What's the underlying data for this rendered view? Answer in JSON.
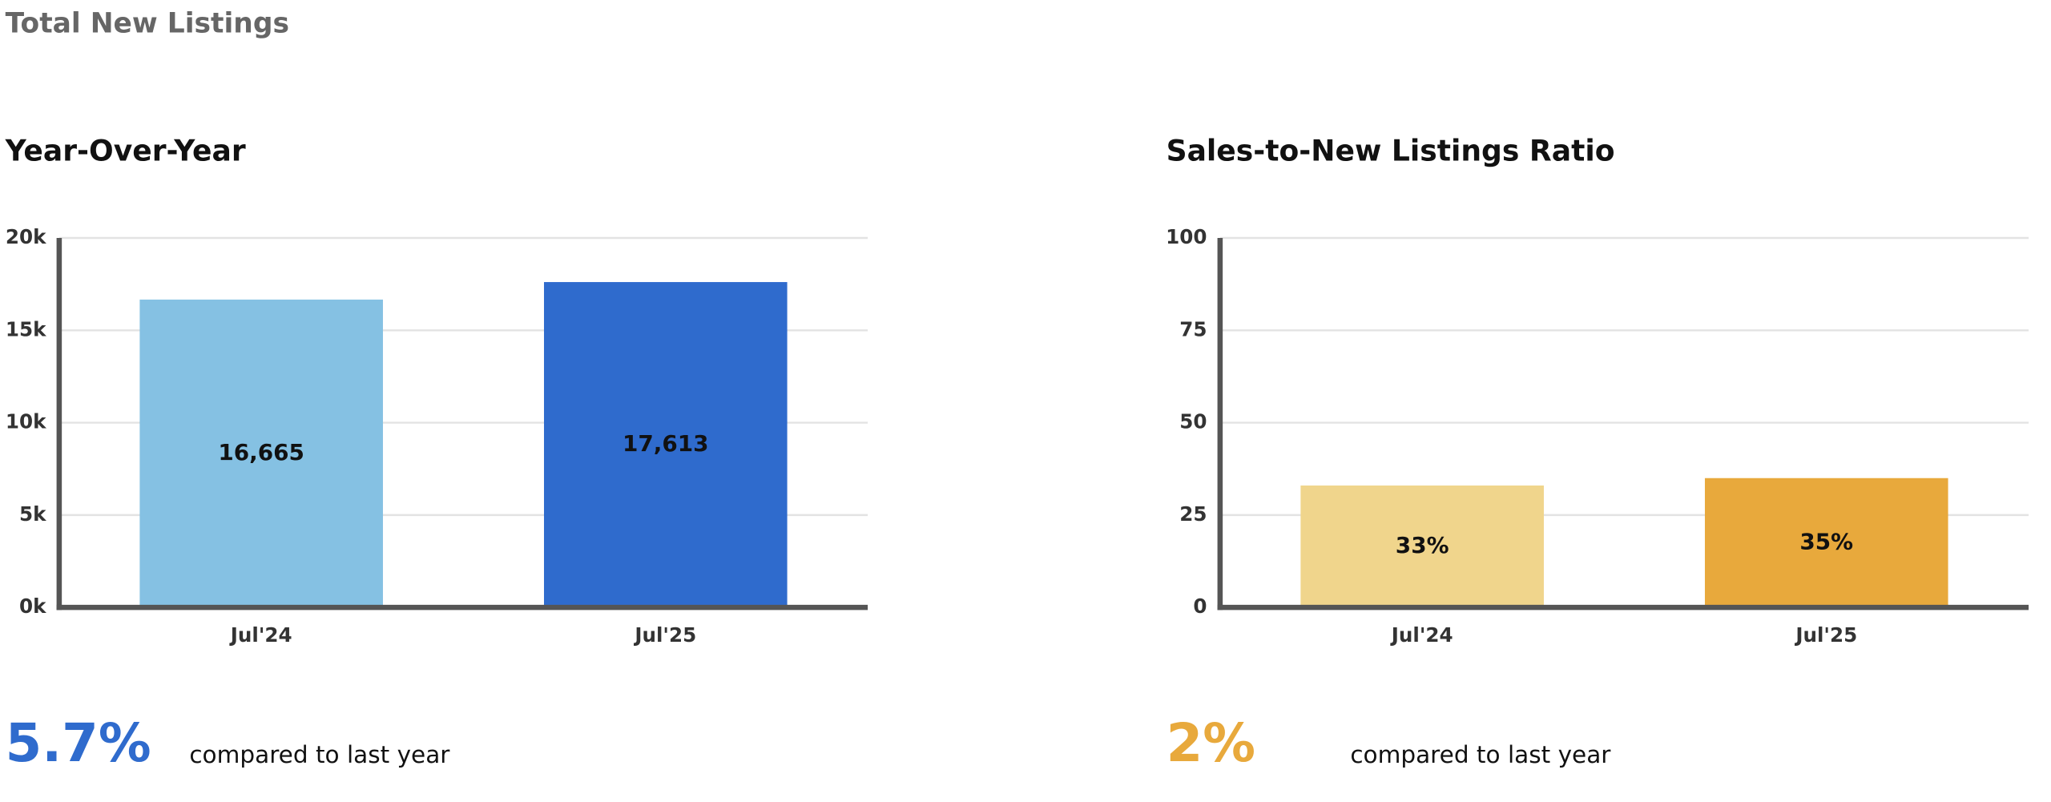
{
  "page_title": "Total New Listings",
  "chart_data": [
    {
      "type": "bar",
      "title": "Year-Over-Year",
      "categories": [
        "Jul'24",
        "Jul'25"
      ],
      "values": [
        16665,
        17613
      ],
      "value_labels": [
        "16,665",
        "17,613"
      ],
      "colors": [
        "#85c1e3",
        "#2f6bcd"
      ],
      "ylim": [
        0,
        20000
      ],
      "yticks": [
        {
          "value": 0,
          "label": "0k"
        },
        {
          "value": 5000,
          "label": "5k"
        },
        {
          "value": 10000,
          "label": "10k"
        },
        {
          "value": 15000,
          "label": "15k"
        },
        {
          "value": 20000,
          "label": "20k"
        }
      ],
      "grid": true,
      "summary": {
        "change": "5.7%",
        "text": "compared to last year",
        "color": "#2f6bcd"
      }
    },
    {
      "type": "bar",
      "title": "Sales-to-New Listings Ratio",
      "categories": [
        "Jul'24",
        "Jul'25"
      ],
      "values": [
        33,
        35
      ],
      "value_labels": [
        "33%",
        "35%"
      ],
      "colors": [
        "#f0d58c",
        "#e8a93c"
      ],
      "ylim": [
        0,
        100
      ],
      "yticks": [
        0,
        25,
        50,
        75,
        100
      ],
      "grid": true,
      "summary": {
        "change": "2%",
        "text": "compared to last year",
        "color": "#e8a93c"
      }
    }
  ]
}
